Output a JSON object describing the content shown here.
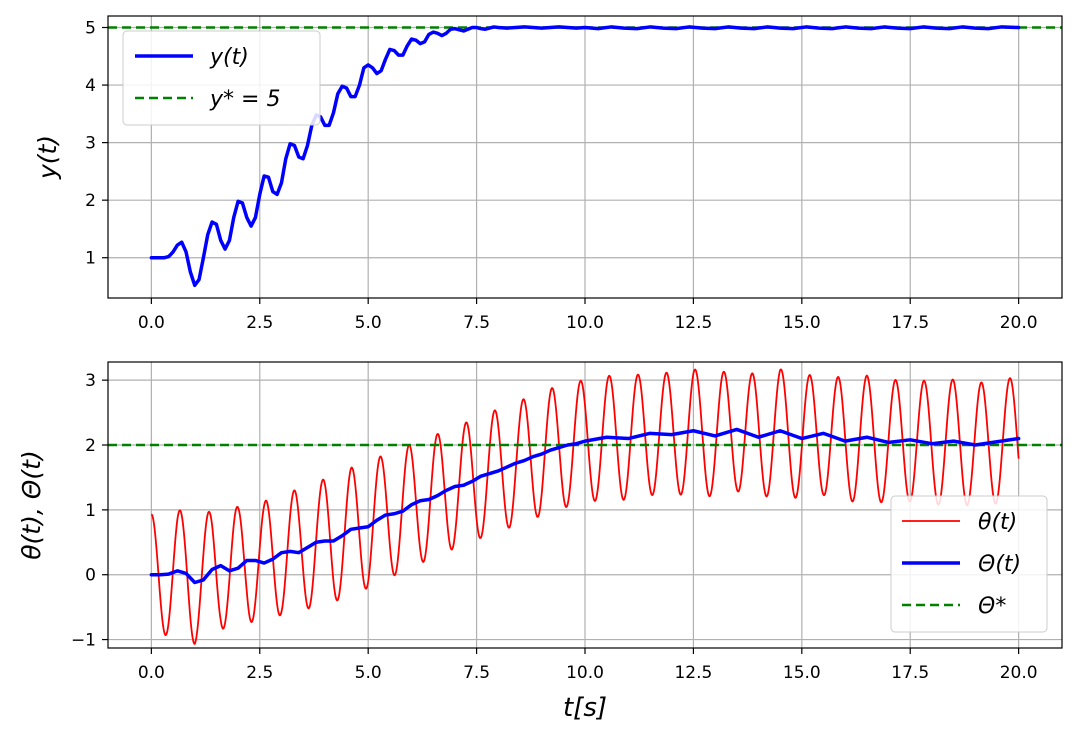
{
  "chart_data": [
    {
      "type": "line",
      "title": "",
      "xlabel": "",
      "ylabel": "y(t)",
      "xlim": [
        -1.0,
        21.0
      ],
      "ylim": [
        0.3,
        5.2
      ],
      "grid": true,
      "legend_position": "top-left",
      "x_ticks": [
        0,
        2.5,
        5,
        7.5,
        10,
        12.5,
        15,
        17.5,
        20
      ],
      "x_tick_labels": [
        "0.0",
        "2.5",
        "5.0",
        "7.5",
        "10.0",
        "12.5",
        "15.0",
        "17.5",
        "20.0"
      ],
      "y_ticks": [
        1,
        2,
        3,
        4,
        5
      ],
      "y_tick_labels": [
        "1",
        "2",
        "3",
        "4",
        "5"
      ],
      "series": [
        {
          "name": "y(t)",
          "color": "#0000ff",
          "style": "solid",
          "x": [
            0,
            0.1,
            0.2,
            0.3,
            0.4,
            0.5,
            0.6,
            0.7,
            0.8,
            0.9,
            1.0,
            1.1,
            1.2,
            1.3,
            1.4,
            1.5,
            1.6,
            1.7,
            1.8,
            1.9,
            2.0,
            2.1,
            2.2,
            2.3,
            2.4,
            2.5,
            2.6,
            2.7,
            2.8,
            2.9,
            3.0,
            3.1,
            3.2,
            3.3,
            3.4,
            3.5,
            3.6,
            3.7,
            3.8,
            3.9,
            4.0,
            4.1,
            4.2,
            4.3,
            4.4,
            4.5,
            4.6,
            4.7,
            4.8,
            4.9,
            5.0,
            5.1,
            5.2,
            5.3,
            5.4,
            5.5,
            5.6,
            5.7,
            5.8,
            5.9,
            6.0,
            6.1,
            6.2,
            6.3,
            6.4,
            6.5,
            6.6,
            6.7,
            6.8,
            6.9,
            7.0,
            7.1,
            7.2,
            7.3,
            7.4,
            7.5,
            7.6,
            7.7,
            7.8,
            7.9,
            8.0,
            8.2,
            8.4,
            8.6,
            8.8,
            9.0,
            9.2,
            9.4,
            9.6,
            9.8,
            10.0,
            10.3,
            10.6,
            10.9,
            11.2,
            11.5,
            11.8,
            12.1,
            12.4,
            12.7,
            13.0,
            13.3,
            13.6,
            13.9,
            14.2,
            14.5,
            14.8,
            15.1,
            15.4,
            15.7,
            16.0,
            16.3,
            16.6,
            16.9,
            17.2,
            17.5,
            17.8,
            18.1,
            18.4,
            18.7,
            19.0,
            19.3,
            19.6,
            20.0
          ],
          "values": [
            1.0,
            1.0,
            1.0,
            1.0,
            1.02,
            1.1,
            1.22,
            1.27,
            1.1,
            0.75,
            0.52,
            0.62,
            1.0,
            1.4,
            1.62,
            1.58,
            1.3,
            1.15,
            1.3,
            1.7,
            1.98,
            1.95,
            1.7,
            1.55,
            1.7,
            2.1,
            2.42,
            2.4,
            2.15,
            2.1,
            2.3,
            2.72,
            2.98,
            2.95,
            2.75,
            2.72,
            2.95,
            3.3,
            3.48,
            3.45,
            3.3,
            3.3,
            3.52,
            3.85,
            3.98,
            3.95,
            3.8,
            3.8,
            4.0,
            4.3,
            4.35,
            4.3,
            4.2,
            4.25,
            4.45,
            4.62,
            4.6,
            4.52,
            4.52,
            4.68,
            4.8,
            4.78,
            4.72,
            4.75,
            4.88,
            4.92,
            4.9,
            4.86,
            4.9,
            4.97,
            4.98,
            4.96,
            4.94,
            4.97,
            5.0,
            5.0,
            4.98,
            4.97,
            4.99,
            5.01,
            5.0,
            4.99,
            5.0,
            5.01,
            5.0,
            4.99,
            5.0,
            5.01,
            5.0,
            4.99,
            5.0,
            4.98,
            5.01,
            4.99,
            4.98,
            5.01,
            4.99,
            4.98,
            5.01,
            4.99,
            4.98,
            5.01,
            4.99,
            4.98,
            5.01,
            4.99,
            4.98,
            5.01,
            4.99,
            4.98,
            5.01,
            4.99,
            4.98,
            5.01,
            4.99,
            4.98,
            5.01,
            4.99,
            4.98,
            5.01,
            4.99,
            4.98,
            5.01,
            5.0
          ]
        },
        {
          "name": "y* = 5",
          "color": "#008000",
          "style": "dashed",
          "x": [
            -1.0,
            21.0
          ],
          "values": [
            5,
            5
          ]
        }
      ]
    },
    {
      "type": "line",
      "title": "",
      "xlabel": "t[s]",
      "ylabel": "θ(t), Θ(t)",
      "xlim": [
        -1.0,
        21.0
      ],
      "ylim": [
        -1.13,
        3.28
      ],
      "grid": true,
      "legend_position": "bottom-right",
      "x_ticks": [
        0,
        2.5,
        5,
        7.5,
        10,
        12.5,
        15,
        17.5,
        20
      ],
      "x_tick_labels": [
        "0.0",
        "2.5",
        "5.0",
        "7.5",
        "10.0",
        "12.5",
        "15.0",
        "17.5",
        "20.0"
      ],
      "y_ticks": [
        -1,
        0,
        1,
        2,
        3
      ],
      "y_tick_labels": [
        "−1",
        "0",
        "1",
        "2",
        "3"
      ],
      "series_meta": [
        {
          "name": "θ(t)",
          "color": "#ff0000",
          "style": "solid"
        },
        {
          "name": "Θ(t)",
          "color": "#0000ff",
          "style": "solid"
        },
        {
          "name": "Θ*",
          "color": "#008000",
          "style": "dashed"
        }
      ],
      "theta_oscillation": {
        "period": 0.66,
        "start_value": 1.0,
        "approx_max_peak": 3.05,
        "approx_min_trough": -0.93
      },
      "Theta_values": {
        "x": [
          0,
          0.2,
          0.4,
          0.6,
          0.8,
          1.0,
          1.2,
          1.4,
          1.6,
          1.8,
          2.0,
          2.2,
          2.4,
          2.6,
          2.8,
          3.0,
          3.2,
          3.4,
          3.6,
          3.8,
          4.0,
          4.2,
          4.4,
          4.6,
          4.8,
          5.0,
          5.2,
          5.4,
          5.6,
          5.8,
          6.0,
          6.2,
          6.4,
          6.6,
          6.8,
          7.0,
          7.2,
          7.4,
          7.6,
          7.8,
          8.0,
          8.2,
          8.4,
          8.6,
          8.8,
          9.0,
          9.2,
          9.4,
          9.6,
          9.8,
          10.0,
          10.5,
          11.0,
          11.5,
          12.0,
          12.5,
          13.0,
          13.5,
          14.0,
          14.5,
          15.0,
          15.5,
          16.0,
          16.5,
          17.0,
          17.5,
          18.0,
          18.5,
          19.0,
          19.5,
          20.0
        ],
        "values": [
          0.0,
          0.0,
          0.01,
          0.06,
          0.02,
          -0.12,
          -0.08,
          0.08,
          0.14,
          0.06,
          0.1,
          0.22,
          0.22,
          0.18,
          0.24,
          0.34,
          0.36,
          0.34,
          0.42,
          0.5,
          0.52,
          0.52,
          0.6,
          0.7,
          0.72,
          0.74,
          0.84,
          0.92,
          0.94,
          0.98,
          1.08,
          1.14,
          1.16,
          1.22,
          1.3,
          1.36,
          1.38,
          1.44,
          1.52,
          1.56,
          1.6,
          1.66,
          1.72,
          1.76,
          1.82,
          1.86,
          1.92,
          1.96,
          2.0,
          2.02,
          2.06,
          2.12,
          2.1,
          2.18,
          2.16,
          2.22,
          2.14,
          2.24,
          2.12,
          2.22,
          2.1,
          2.18,
          2.06,
          2.12,
          2.04,
          2.08,
          2.02,
          2.06,
          2.0,
          2.05,
          2.1
        ]
      },
      "Theta_star": 2
    }
  ],
  "legends": {
    "top": [
      {
        "label": "y(t)",
        "color": "#0000ff",
        "style": "solid"
      },
      {
        "label": "y* = 5",
        "color": "#008000",
        "style": "dashed"
      }
    ],
    "bottom": [
      {
        "label": "θ(t)",
        "color": "#ff0000",
        "style": "solid"
      },
      {
        "label": "Θ(t)",
        "color": "#0000ff",
        "style": "solid"
      },
      {
        "label": "Θ*",
        "color": "#008000",
        "style": "dashed"
      }
    ]
  }
}
